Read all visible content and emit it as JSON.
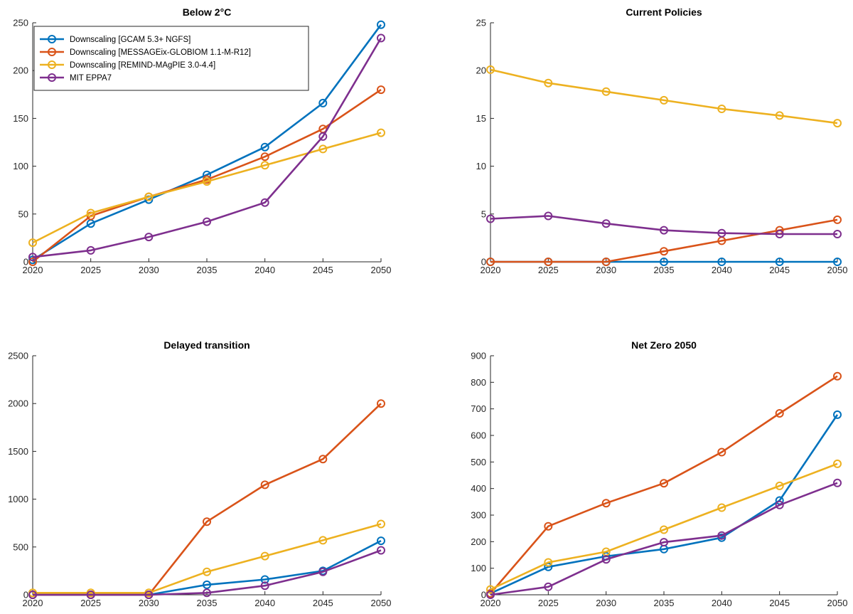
{
  "colors": {
    "GCAM": "#0072BD",
    "MESSAGE": "#D95319",
    "REMIND": "#EDB120",
    "EPPA": "#7E2F8E",
    "axis": "#262626"
  },
  "chart_data": [
    {
      "type": "line",
      "title": "Below 2°C",
      "xlabel": "",
      "ylabel": "",
      "x": [
        2020,
        2025,
        2030,
        2035,
        2040,
        2045,
        2050
      ],
      "xlim": [
        2020,
        2050
      ],
      "ylim": [
        0,
        250
      ],
      "yticks": [
        0,
        50,
        100,
        150,
        200,
        250
      ],
      "legend": "top-left",
      "grid": false,
      "series": [
        {
          "name": "Downscaling [GCAM 5.3+ NGFS]",
          "color_key": "GCAM",
          "values": [
            2,
            40,
            65,
            91,
            120,
            166,
            248
          ]
        },
        {
          "name": "Downscaling [MESSAGEix-GLOBIOM 1.1-M-R12]",
          "color_key": "MESSAGE",
          "values": [
            0,
            48,
            68,
            86,
            110,
            139,
            180
          ]
        },
        {
          "name": "Downscaling [REMIND-MAgPIE 3.0-4.4]",
          "color_key": "REMIND",
          "values": [
            20,
            51,
            68,
            84,
            101,
            118,
            135
          ]
        },
        {
          "name": "MIT EPPA7",
          "color_key": "EPPA",
          "values": [
            5,
            12,
            26,
            42,
            62,
            131,
            234
          ]
        }
      ]
    },
    {
      "type": "line",
      "title": "Current Policies",
      "xlabel": "",
      "ylabel": "",
      "x": [
        2020,
        2025,
        2030,
        2035,
        2040,
        2045,
        2050
      ],
      "xlim": [
        2020,
        2050
      ],
      "ylim": [
        0,
        25
      ],
      "yticks": [
        0,
        5,
        10,
        15,
        20,
        25
      ],
      "grid": false,
      "series": [
        {
          "name": "",
          "color_key": "GCAM",
          "values": [
            0,
            0,
            0,
            0,
            0,
            0,
            0
          ]
        },
        {
          "name": "",
          "color_key": "MESSAGE",
          "values": [
            0,
            0,
            0,
            1.1,
            2.2,
            3.3,
            4.4
          ]
        },
        {
          "name": "",
          "color_key": "REMIND",
          "values": [
            20.1,
            18.7,
            17.8,
            16.9,
            16.0,
            15.3,
            14.5
          ]
        },
        {
          "name": "",
          "color_key": "EPPA",
          "values": [
            4.5,
            4.8,
            4.0,
            3.3,
            3.0,
            2.9,
            2.9
          ]
        }
      ]
    },
    {
      "type": "line",
      "title": "Delayed transition",
      "xlabel": "",
      "ylabel": "",
      "x": [
        2020,
        2025,
        2030,
        2035,
        2040,
        2045,
        2050
      ],
      "xlim": [
        2020,
        2050
      ],
      "ylim": [
        0,
        2500
      ],
      "yticks": [
        0,
        500,
        1000,
        1500,
        2000,
        2500
      ],
      "grid": false,
      "series": [
        {
          "name": "",
          "color_key": "GCAM",
          "values": [
            0,
            0,
            0,
            105,
            160,
            250,
            565
          ]
        },
        {
          "name": "",
          "color_key": "MESSAGE",
          "values": [
            0,
            0,
            0,
            765,
            1150,
            1420,
            2000
          ]
        },
        {
          "name": "",
          "color_key": "REMIND",
          "values": [
            20,
            20,
            20,
            240,
            405,
            570,
            740
          ]
        },
        {
          "name": "",
          "color_key": "EPPA",
          "values": [
            0,
            0,
            0,
            20,
            95,
            240,
            465
          ]
        }
      ]
    },
    {
      "type": "line",
      "title": "Net Zero 2050",
      "xlabel": "",
      "ylabel": "",
      "x": [
        2020,
        2025,
        2030,
        2035,
        2040,
        2045,
        2050
      ],
      "xlim": [
        2020,
        2050
      ],
      "ylim": [
        0,
        900
      ],
      "yticks": [
        0,
        100,
        200,
        300,
        400,
        500,
        600,
        700,
        800,
        900
      ],
      "grid": false,
      "series": [
        {
          "name": "",
          "color_key": "GCAM",
          "values": [
            5,
            105,
            145,
            172,
            215,
            355,
            678
          ]
        },
        {
          "name": "",
          "color_key": "MESSAGE",
          "values": [
            5,
            258,
            345,
            420,
            537,
            683,
            823
          ]
        },
        {
          "name": "",
          "color_key": "REMIND",
          "values": [
            20,
            122,
            162,
            245,
            328,
            410,
            493
          ]
        },
        {
          "name": "",
          "color_key": "EPPA",
          "values": [
            0,
            30,
            133,
            198,
            223,
            338,
            421
          ]
        }
      ]
    }
  ]
}
